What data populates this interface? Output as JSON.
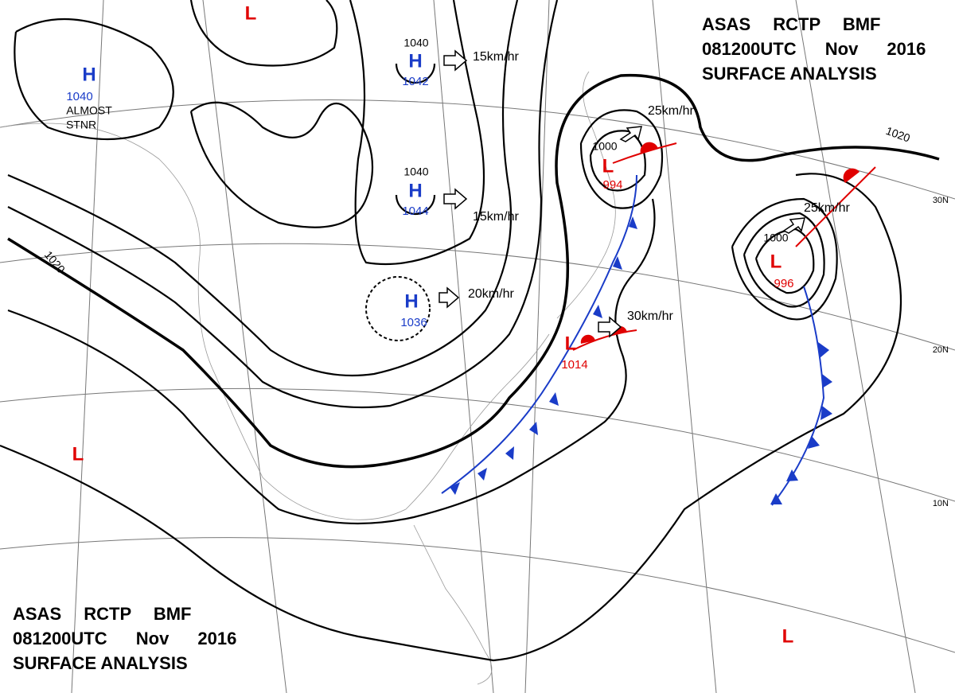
{
  "header": {
    "line1": "ASAS RCTP BMF",
    "line2": "081200UTC Nov 2016",
    "line3": "SURFACE ANALYSIS"
  },
  "centers": [
    {
      "symbol": "H",
      "pressure": "1040",
      "note": [
        "ALMOST",
        "STNR"
      ]
    },
    {
      "symbol": "H",
      "isobar": "1040",
      "pressure": "1042",
      "motion": "15km/hr"
    },
    {
      "symbol": "H",
      "isobar": "1040",
      "pressure": "1044",
      "motion": "15km/hr"
    },
    {
      "symbol": "H",
      "pressure": "1036",
      "motion": "20km/hr"
    },
    {
      "symbol": "L",
      "isobar": "1000",
      "pressure": "994",
      "motion": "25km/hr"
    },
    {
      "symbol": "L",
      "isobar": "1000",
      "pressure": "996",
      "motion": "25km/hr"
    },
    {
      "symbol": "L",
      "pressure": "1014",
      "motion": "30km/hr"
    },
    {
      "symbol": "L"
    },
    {
      "symbol": "L"
    },
    {
      "symbol": "L"
    }
  ],
  "isobar_labels": [
    "1020",
    "1020"
  ],
  "latitudes": [
    "30N",
    "20N",
    "10N"
  ]
}
